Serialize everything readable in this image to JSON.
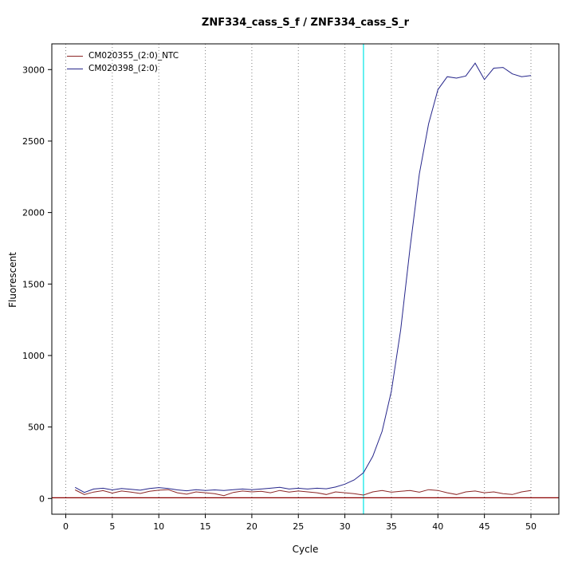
{
  "page": {
    "title": "ZNF334_cass_S_f / ZNF334_cass_S_r"
  },
  "chart_data": {
    "type": "line",
    "title": "ZNF334_cass_S_f / ZNF334_cass_S_r",
    "xlabel": "Cycle",
    "ylabel": "Fluorescent",
    "xlim": [
      -1.5,
      53
    ],
    "ylim": [
      -110,
      3180
    ],
    "xticks": [
      0,
      5,
      10,
      15,
      20,
      25,
      30,
      35,
      40,
      45,
      50
    ],
    "yticks": [
      0,
      500,
      1000,
      1500,
      2000,
      2500,
      3000
    ],
    "grid": "vertical-dotted",
    "grid_color": "#808080",
    "legend_position": "top-left-inside",
    "threshold_line_y": 5,
    "threshold_color": "#8b0000",
    "ct_line_x": 32,
    "ct_line_color": "#00e5e5",
    "x": [
      1,
      2,
      3,
      4,
      5,
      6,
      7,
      8,
      9,
      10,
      11,
      12,
      13,
      14,
      15,
      16,
      17,
      18,
      19,
      20,
      21,
      22,
      23,
      24,
      25,
      26,
      27,
      28,
      29,
      30,
      31,
      32,
      33,
      34,
      35,
      36,
      37,
      38,
      39,
      40,
      41,
      42,
      43,
      44,
      45,
      46,
      47,
      48,
      49,
      50
    ],
    "series": [
      {
        "name": "CM020355_(2:0)_NTC",
        "color": "#8b2525",
        "values": [
          60,
          28,
          45,
          55,
          38,
          52,
          45,
          35,
          50,
          58,
          62,
          40,
          30,
          46,
          40,
          34,
          20,
          42,
          52,
          46,
          50,
          40,
          56,
          45,
          52,
          46,
          40,
          28,
          46,
          40,
          34,
          24,
          46,
          56,
          44,
          50,
          56,
          44,
          62,
          56,
          40,
          28,
          46,
          52,
          40,
          46,
          34,
          28,
          46,
          56
        ]
      },
      {
        "name": "CM020398_(2:0)",
        "color": "#26268b",
        "values": [
          78,
          42,
          66,
          72,
          60,
          70,
          64,
          58,
          70,
          76,
          70,
          60,
          54,
          62,
          56,
          60,
          56,
          62,
          66,
          62,
          66,
          72,
          78,
          66,
          72,
          66,
          72,
          68,
          80,
          100,
          130,
          180,
          295,
          470,
          750,
          1180,
          1750,
          2270,
          2620,
          2860,
          2950,
          2940,
          2955,
          3045,
          2930,
          3010,
          3015,
          2970,
          2950,
          2958
        ]
      }
    ]
  }
}
